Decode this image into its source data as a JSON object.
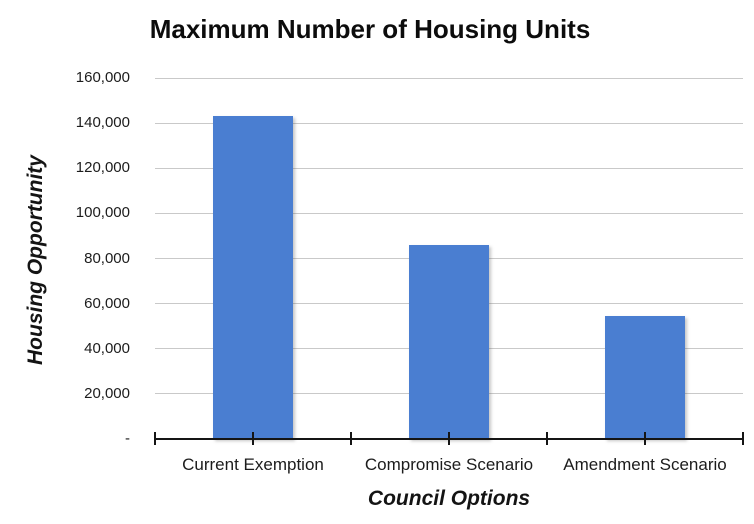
{
  "chart_data": {
    "type": "bar",
    "title": "Maximum Number of Housing Units",
    "xlabel": "Council Options",
    "ylabel": "Housing Opportunity",
    "categories": [
      "Current Exemption",
      "Compromise Scenario",
      "Amendment Scenario"
    ],
    "values": [
      143000,
      86000,
      54500
    ],
    "ylim": [
      0,
      160000
    ],
    "ytick_interval": 20000,
    "ytick_labels": [
      "-",
      "20,000",
      "40,000",
      "60,000",
      "80,000",
      "100,000",
      "120,000",
      "140,000",
      "160,000"
    ],
    "grid": true,
    "legend": "none",
    "bar_color": "#4a7ed1",
    "gridline_color": "#c9c9c9",
    "axis_color": "#151515",
    "text_color": "#1c1c1c"
  }
}
